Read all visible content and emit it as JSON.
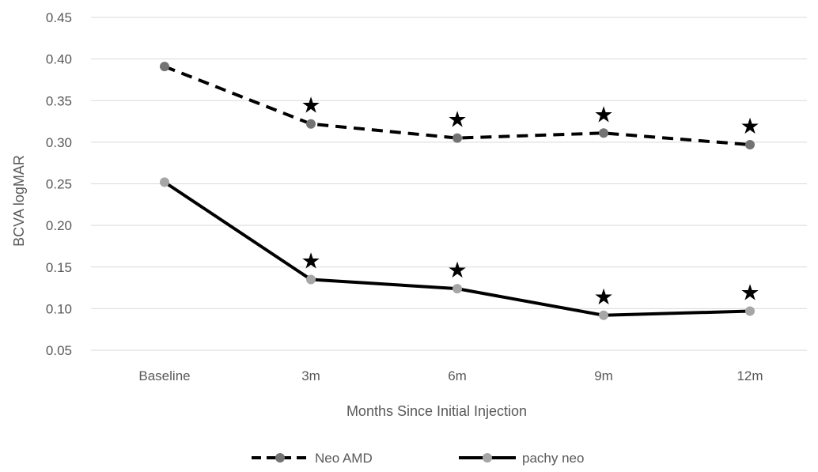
{
  "chart_data": {
    "type": "line",
    "title": "",
    "xlabel": "Months Since Initial Injection",
    "ylabel": "BCVA logMAR",
    "categories": [
      "Baseline",
      "3m",
      "6m",
      "9m",
      "12m"
    ],
    "ylim": [
      0.05,
      0.45
    ],
    "yticks": [
      "0.05",
      "0.10",
      "0.15",
      "0.20",
      "0.25",
      "0.30",
      "0.35",
      "0.40",
      "0.45"
    ],
    "grid": true,
    "legend_position": "bottom",
    "series": [
      {
        "name": "Neo AMD",
        "values": [
          0.391,
          0.322,
          0.305,
          0.311,
          0.297
        ],
        "line_color": "#000000",
        "marker_color": "#737373",
        "dashed": true,
        "stars": [
          false,
          true,
          true,
          true,
          true
        ]
      },
      {
        "name": "pachy neo",
        "values": [
          0.252,
          0.135,
          0.124,
          0.092,
          0.097
        ],
        "line_color": "#000000",
        "marker_color": "#a6a6a6",
        "dashed": false,
        "stars": [
          false,
          true,
          true,
          true,
          true
        ]
      }
    ],
    "annotation_symbol": "★"
  }
}
